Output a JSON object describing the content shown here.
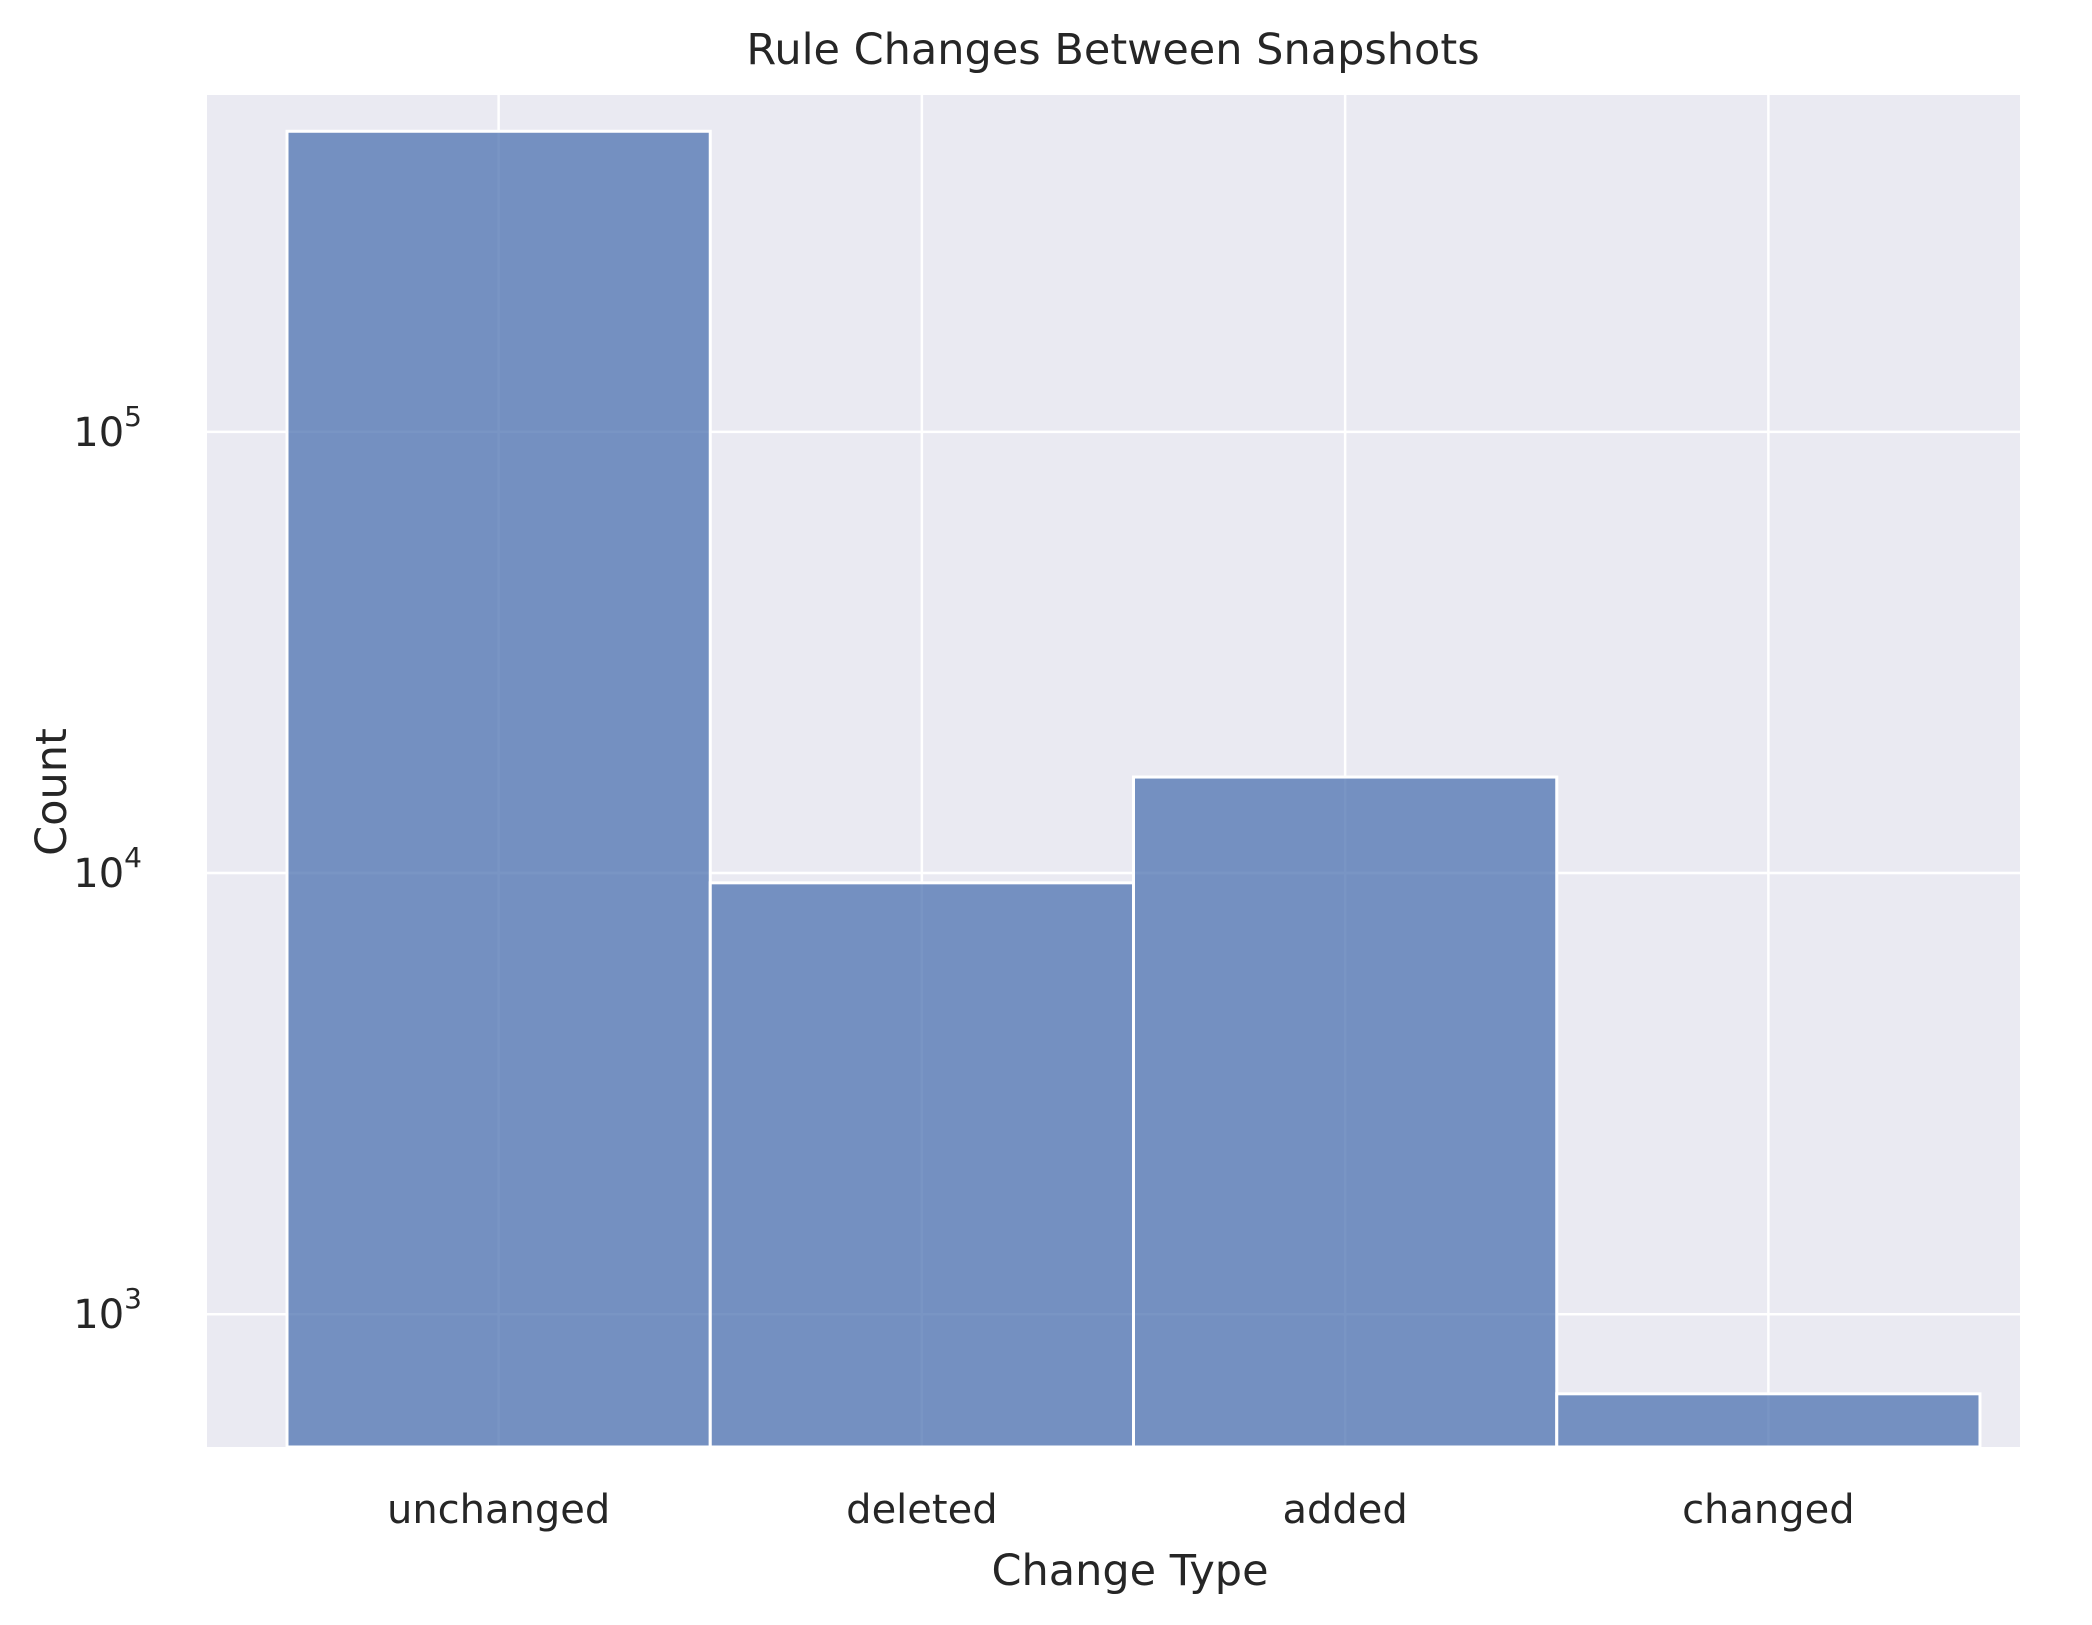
{
  "chart_data": {
    "type": "bar",
    "title": "Rule Changes Between Snapshots",
    "xlabel": "Change Type",
    "ylabel": "Count",
    "yscale": "log",
    "ylim": [
      500,
      580000
    ],
    "categories": [
      "unchanged",
      "deleted",
      "added",
      "changed"
    ],
    "values": [
      480000,
      9500,
      16500,
      660
    ],
    "yticks": [
      {
        "value": 1000,
        "base": "10",
        "exp": "3"
      },
      {
        "value": 10000,
        "base": "10",
        "exp": "4"
      },
      {
        "value": 100000,
        "base": "10",
        "exp": "5"
      }
    ],
    "grid": true,
    "legend": "none",
    "colors": {
      "bar_fill": "#4c72b0",
      "bar_opacity": 0.75,
      "plot_background": "#eaeaf2",
      "grid": "#ffffff",
      "text": "#262626"
    }
  }
}
